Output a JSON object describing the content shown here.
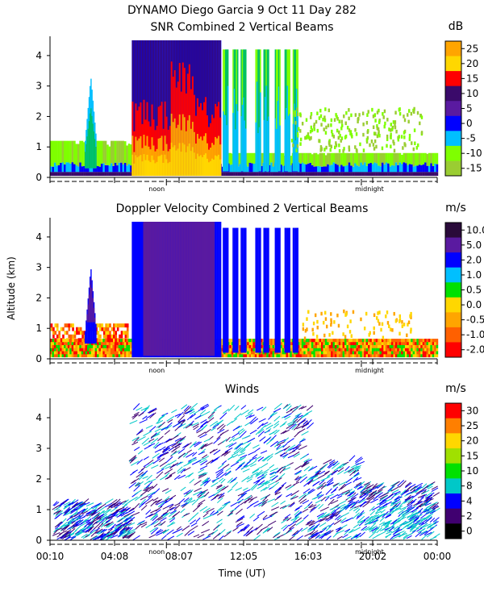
{
  "title_line1": "DYNAMO Diego Garcia   9 Oct 11 Day 282",
  "shared_axes": {
    "ylabel": "Altitude (km)",
    "xlabel": "Time (UT)",
    "ylim": [
      0,
      4.5
    ],
    "yticks": [
      0,
      1,
      2,
      3,
      4
    ],
    "xlim_hours": [
      0.1667,
      24.0
    ],
    "xtick_labels": [
      "00:10",
      "04:08",
      "08:07",
      "12:05",
      "16:03",
      "20:02",
      "00:00"
    ],
    "marker_noon": "noon",
    "marker_midnight": "midnight"
  },
  "chart_data": [
    {
      "type": "heatmap",
      "title": "SNR Combined 2 Vertical Beams",
      "colorbar_unit": "dB",
      "colorbar_ticks": [
        "25",
        "20",
        "15",
        "10",
        "5",
        "0",
        "-5",
        "-10",
        "-15"
      ],
      "colorbar_colors": [
        "#ffa500",
        "#ffd700",
        "#ff0000",
        "#3a0a6a",
        "#5a1aa0",
        "#0000ff",
        "#00bfff",
        "#7fff00",
        "#9acd32"
      ]
    },
    {
      "type": "heatmap",
      "title": "Doppler Velocity Combined 2 Vertical Beams",
      "colorbar_unit": "m/s",
      "colorbar_ticks": [
        "10.0",
        "5.0",
        "2.0",
        "1.0",
        "0.5",
        "0.0",
        "-0.5",
        "-1.0",
        "-2.0"
      ],
      "colorbar_colors": [
        "#2a0a3a",
        "#5a1aa0",
        "#0000ff",
        "#00bfff",
        "#00e000",
        "#ffd700",
        "#ffa500",
        "#ff6000",
        "#ff0000"
      ]
    },
    {
      "type": "scatter",
      "title": "Winds",
      "colorbar_unit": "m/s",
      "colorbar_ticks": [
        "30",
        "25",
        "20",
        "15",
        "10",
        "8",
        "4",
        "2",
        "0"
      ],
      "colorbar_colors": [
        "#ff0000",
        "#ff7f00",
        "#ffd700",
        "#a0e000",
        "#00e000",
        "#00c8c8",
        "#0000ff",
        "#400070",
        "#000000"
      ]
    }
  ]
}
